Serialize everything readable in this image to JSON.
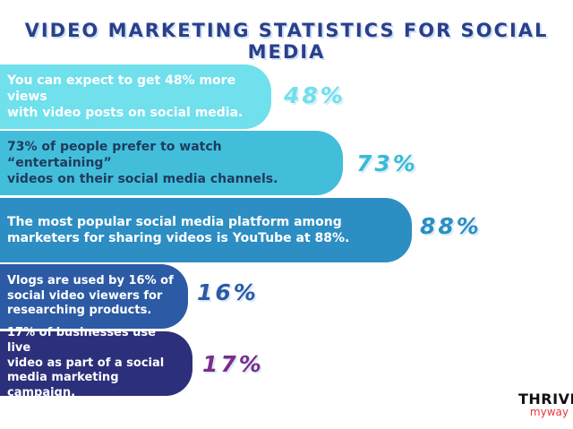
{
  "title": "VIDEO MARKETING STATISTICS FOR SOCIAL MEDIA",
  "colors": {
    "title": "#2b3f8c",
    "stat_1": "#6fe0ec",
    "stat_2": "#42bedb",
    "stat_3": "#2c8ec3",
    "stat_4": "#2c5aa4",
    "stat_5": "#2c2f7a"
  },
  "chart_data": {
    "type": "bar",
    "orientation": "horizontal",
    "categories": [
      "You can expect to get 48% more views with video posts on social media.",
      "73% of people prefer to watch “entertaining” videos on their social media channels.",
      "The most popular social media platform among marketers for sharing videos is YouTube at 88%.",
      "Vlogs are used by 16% of social video viewers for researching products.",
      "17% of businesses use live video as part of a social media marketing campaign."
    ],
    "values": [
      48,
      73,
      88,
      16,
      17
    ],
    "value_labels": [
      "48%",
      "73%",
      "88%",
      "16%",
      "17%"
    ]
  },
  "stats": [
    {
      "text": "You can expect to get 48% more views\nwith video posts on social media.",
      "value": "48%"
    },
    {
      "text": "73% of people prefer to watch “entertaining”\nvideos on their social media channels.",
      "value": "73%"
    },
    {
      "text": "The most popular social media platform among\nmarketers for sharing videos is YouTube at 88%.",
      "value": "88%"
    },
    {
      "text": "Vlogs are used by 16% of\nsocial video viewers for\nresearching products.",
      "value": "16%"
    },
    {
      "text": "17% of businesses use live\nvideo as part of a social\nmedia marketing campaign.",
      "value": "17%"
    }
  ],
  "logo": {
    "top": "THRIVE",
    "bottom": "myway"
  }
}
